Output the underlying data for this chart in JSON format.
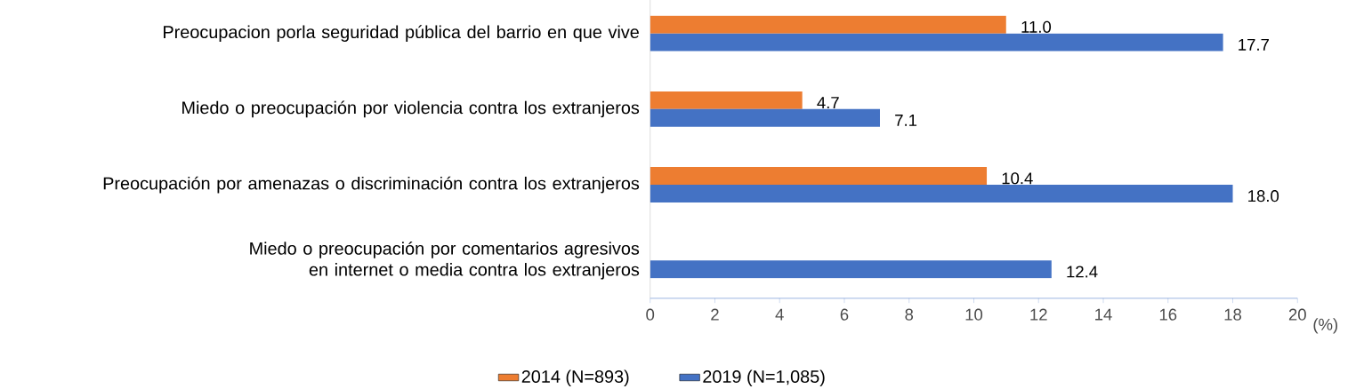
{
  "chart_data": {
    "type": "bar",
    "orientation": "horizontal",
    "xlabel": "(%)",
    "categories": [
      "Preocupacion porla seguridad pública del barrio en que vive",
      "Miedo o preocupación por violencia contra los extranjeros",
      "Preocupación por amenazas o discriminación contra los extranjeros",
      "Miedo o preocupación por comentarios agresivos en internet o media contra los extranjeros"
    ],
    "series": [
      {
        "name": "2014 (N=893)",
        "color": "#ed7d31",
        "values": [
          11.0,
          4.7,
          10.4,
          null
        ],
        "value_labels": [
          "11.0",
          "4.7",
          "10.4",
          null
        ]
      },
      {
        "name": "2019 (N=1,085)",
        "color": "#4472c4",
        "values": [
          17.7,
          7.1,
          18.0,
          12.4
        ],
        "value_labels": [
          "17.7",
          "7.1",
          "18.0",
          "12.4"
        ]
      }
    ],
    "xlim": [
      0,
      20
    ],
    "xticks": [
      0,
      2,
      4,
      6,
      8,
      10,
      12,
      14,
      16,
      18,
      20
    ],
    "grid": false,
    "legend": "bottom"
  }
}
